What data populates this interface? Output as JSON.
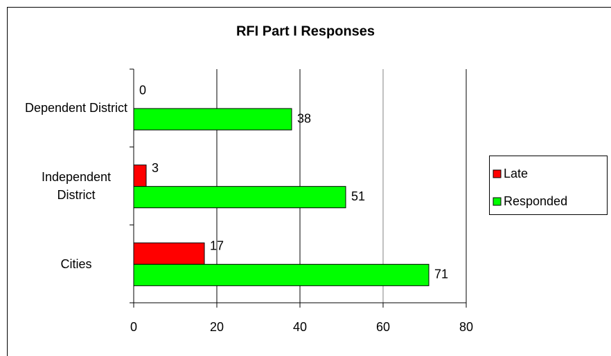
{
  "chart_data": {
    "type": "bar",
    "orientation": "horizontal",
    "title": "RFI Part I Responses",
    "categories": [
      "Dependent District",
      "Independent District",
      "Cities"
    ],
    "series": [
      {
        "name": "Late",
        "color": "#ff0000",
        "values": [
          0,
          3,
          17
        ]
      },
      {
        "name": "Responded",
        "color": "#00ff00",
        "values": [
          38,
          51,
          71
        ]
      }
    ],
    "xlim": [
      0,
      80
    ],
    "xticks": [
      0,
      20,
      40,
      60,
      80
    ],
    "grid": true,
    "legend": "right"
  }
}
